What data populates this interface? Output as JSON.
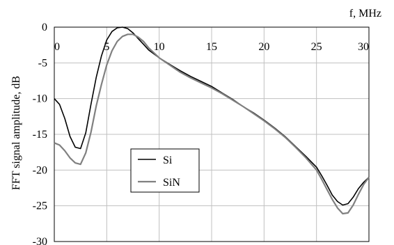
{
  "chart_data": {
    "type": "line",
    "title": "",
    "xlabel": "f, MHz",
    "ylabel": "FFT signal amplitude, dB",
    "xlim": [
      0,
      30
    ],
    "ylim": [
      -30,
      0
    ],
    "x_ticks": [
      "0",
      "5",
      "10",
      "15",
      "20",
      "25",
      "30"
    ],
    "y_ticks": [
      "0",
      "-5",
      "-10",
      "-15",
      "-20",
      "-25",
      "-30"
    ],
    "grid": true,
    "legend_position": "lower-left-center",
    "series": [
      {
        "name": "Si",
        "color": "#000000",
        "x": [
          0,
          0.5,
          1,
          1.5,
          2,
          2.5,
          3,
          3.5,
          4,
          4.5,
          5,
          5.5,
          6,
          6.5,
          7,
          7.5,
          8,
          8.5,
          9,
          10,
          11,
          12,
          13,
          14,
          15,
          16,
          17,
          18,
          19,
          20,
          21,
          22,
          23,
          24,
          25,
          25.5,
          26,
          26.5,
          27,
          27.5,
          28,
          28.5,
          29,
          29.5,
          30
        ],
        "y": [
          -10,
          -10.8,
          -12.8,
          -15.3,
          -16.8,
          -17.0,
          -14.8,
          -10.8,
          -7.0,
          -4.0,
          -1.8,
          -0.6,
          -0.1,
          0,
          -0.2,
          -0.8,
          -1.6,
          -2.4,
          -3.2,
          -4.3,
          -5.2,
          -6.1,
          -6.9,
          -7.6,
          -8.3,
          -9.2,
          -10.1,
          -11.1,
          -12.0,
          -13.0,
          -14.1,
          -15.3,
          -16.7,
          -18.1,
          -19.6,
          -20.8,
          -22.1,
          -23.5,
          -24.4,
          -24.9,
          -24.7,
          -23.8,
          -22.6,
          -21.7,
          -21.0
        ]
      },
      {
        "name": "SiN",
        "color": "#808080",
        "x": [
          0,
          0.5,
          1,
          1.5,
          2,
          2.5,
          3,
          3.5,
          4,
          4.5,
          5,
          5.5,
          6,
          6.5,
          7,
          7.5,
          8,
          8.5,
          9,
          10,
          11,
          12,
          13,
          14,
          15,
          16,
          17,
          18,
          19,
          20,
          21,
          22,
          23,
          24,
          25,
          25.5,
          26,
          26.5,
          27,
          27.5,
          28,
          28.5,
          29,
          29.5,
          30
        ],
        "y": [
          -16.2,
          -16.5,
          -17.3,
          -18.3,
          -19.0,
          -19.2,
          -17.6,
          -14.7,
          -11.0,
          -8.0,
          -5.3,
          -3.3,
          -2.0,
          -1.3,
          -1.0,
          -1.0,
          -1.4,
          -2.0,
          -2.9,
          -4.3,
          -5.3,
          -6.3,
          -7.1,
          -7.8,
          -8.5,
          -9.3,
          -10.2,
          -11.1,
          -12.1,
          -13.1,
          -14.2,
          -15.4,
          -16.8,
          -18.3,
          -20.0,
          -21.3,
          -22.7,
          -24.1,
          -25.3,
          -26.1,
          -26.0,
          -24.9,
          -23.4,
          -22.0,
          -21.0
        ]
      }
    ]
  }
}
